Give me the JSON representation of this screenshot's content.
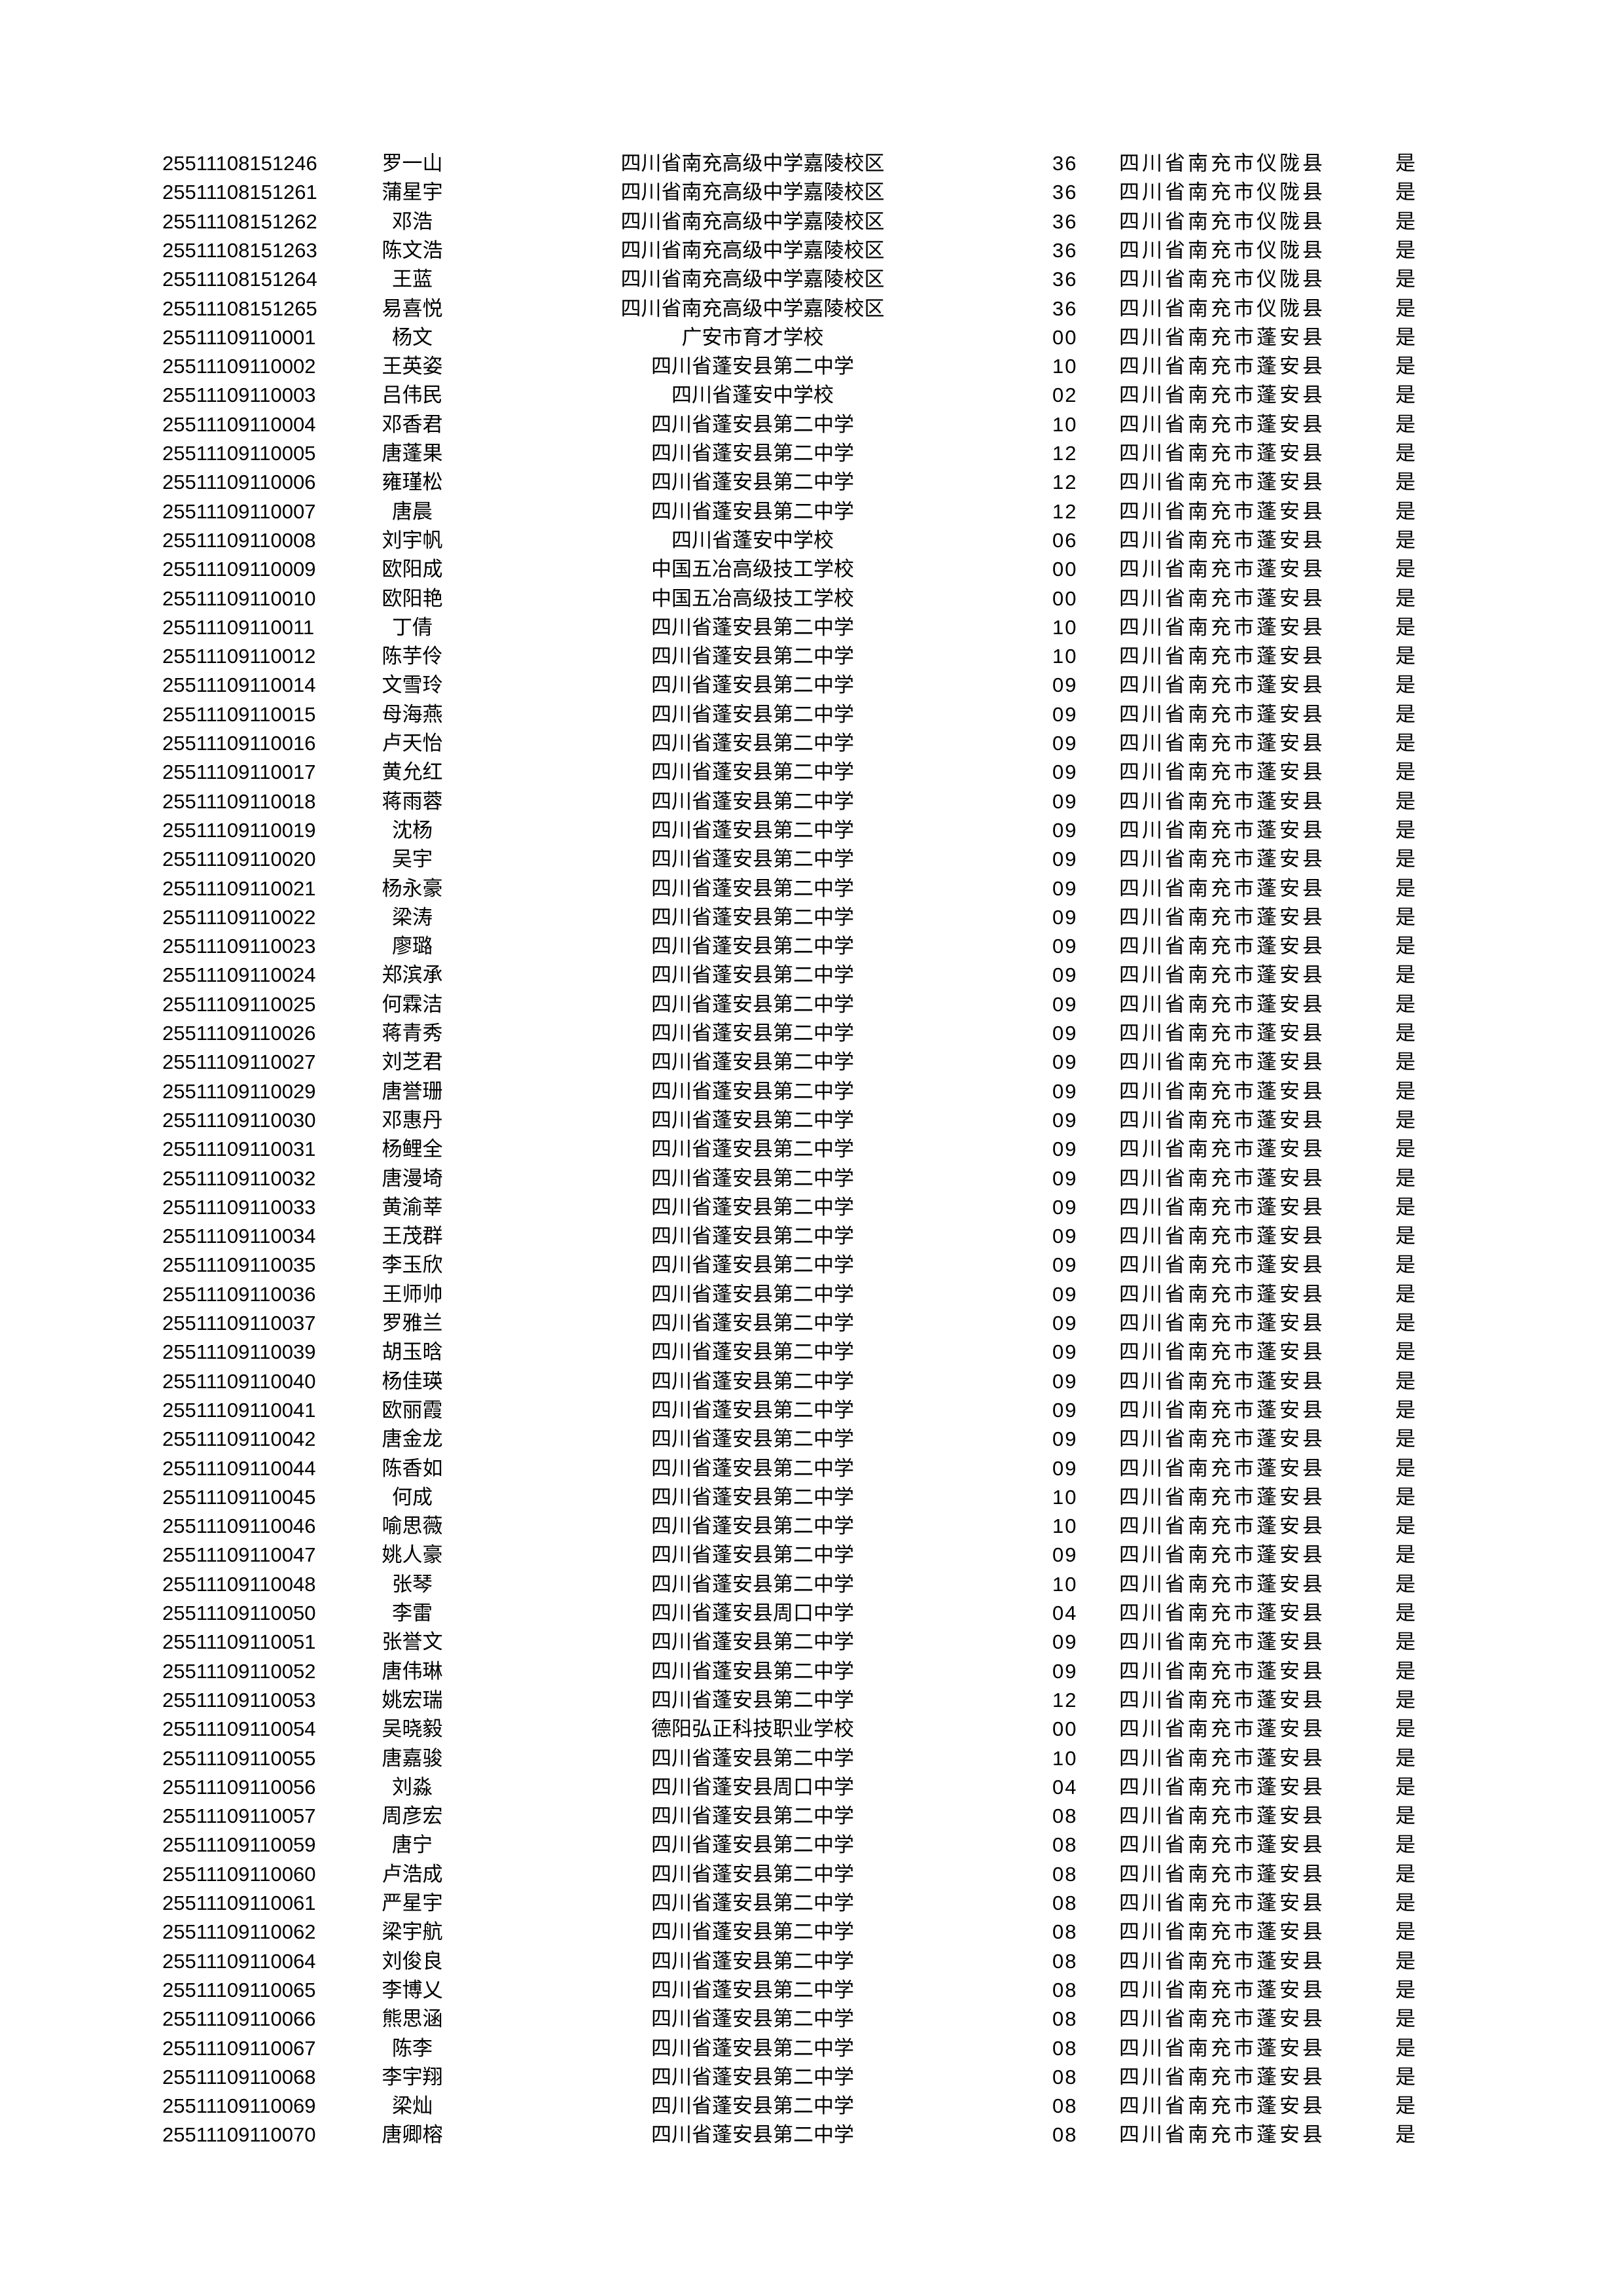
{
  "rows": [
    [
      "25511108151246",
      "罗一山",
      "四川省南充高级中学嘉陵校区",
      "36",
      "四川省南充市仪陇县",
      "是"
    ],
    [
      "25511108151261",
      "蒲星宇",
      "四川省南充高级中学嘉陵校区",
      "36",
      "四川省南充市仪陇县",
      "是"
    ],
    [
      "25511108151262",
      "邓浩",
      "四川省南充高级中学嘉陵校区",
      "36",
      "四川省南充市仪陇县",
      "是"
    ],
    [
      "25511108151263",
      "陈文浩",
      "四川省南充高级中学嘉陵校区",
      "36",
      "四川省南充市仪陇县",
      "是"
    ],
    [
      "25511108151264",
      "王蓝",
      "四川省南充高级中学嘉陵校区",
      "36",
      "四川省南充市仪陇县",
      "是"
    ],
    [
      "25511108151265",
      "易喜悦",
      "四川省南充高级中学嘉陵校区",
      "36",
      "四川省南充市仪陇县",
      "是"
    ],
    [
      "25511109110001",
      "杨文",
      "广安市育才学校",
      "00",
      "四川省南充市蓬安县",
      "是"
    ],
    [
      "25511109110002",
      "王英姿",
      "四川省蓬安县第二中学",
      "10",
      "四川省南充市蓬安县",
      "是"
    ],
    [
      "25511109110003",
      "吕伟民",
      "四川省蓬安中学校",
      "02",
      "四川省南充市蓬安县",
      "是"
    ],
    [
      "25511109110004",
      "邓香君",
      "四川省蓬安县第二中学",
      "10",
      "四川省南充市蓬安县",
      "是"
    ],
    [
      "25511109110005",
      "唐蓬果",
      "四川省蓬安县第二中学",
      "12",
      "四川省南充市蓬安县",
      "是"
    ],
    [
      "25511109110006",
      "雍瑾松",
      "四川省蓬安县第二中学",
      "12",
      "四川省南充市蓬安县",
      "是"
    ],
    [
      "25511109110007",
      "唐晨",
      "四川省蓬安县第二中学",
      "12",
      "四川省南充市蓬安县",
      "是"
    ],
    [
      "25511109110008",
      "刘宇帆",
      "四川省蓬安中学校",
      "06",
      "四川省南充市蓬安县",
      "是"
    ],
    [
      "25511109110009",
      "欧阳成",
      "中国五冶高级技工学校",
      "00",
      "四川省南充市蓬安县",
      "是"
    ],
    [
      "25511109110010",
      "欧阳艳",
      "中国五冶高级技工学校",
      "00",
      "四川省南充市蓬安县",
      "是"
    ],
    [
      "25511109110011",
      "丁倩",
      "四川省蓬安县第二中学",
      "10",
      "四川省南充市蓬安县",
      "是"
    ],
    [
      "25511109110012",
      "陈芋伶",
      "四川省蓬安县第二中学",
      "10",
      "四川省南充市蓬安县",
      "是"
    ],
    [
      "25511109110014",
      "文雪玲",
      "四川省蓬安县第二中学",
      "09",
      "四川省南充市蓬安县",
      "是"
    ],
    [
      "25511109110015",
      "母海燕",
      "四川省蓬安县第二中学",
      "09",
      "四川省南充市蓬安县",
      "是"
    ],
    [
      "25511109110016",
      "卢天怡",
      "四川省蓬安县第二中学",
      "09",
      "四川省南充市蓬安县",
      "是"
    ],
    [
      "25511109110017",
      "黄允红",
      "四川省蓬安县第二中学",
      "09",
      "四川省南充市蓬安县",
      "是"
    ],
    [
      "25511109110018",
      "蒋雨蓉",
      "四川省蓬安县第二中学",
      "09",
      "四川省南充市蓬安县",
      "是"
    ],
    [
      "25511109110019",
      "沈杨",
      "四川省蓬安县第二中学",
      "09",
      "四川省南充市蓬安县",
      "是"
    ],
    [
      "25511109110020",
      "吴宇",
      "四川省蓬安县第二中学",
      "09",
      "四川省南充市蓬安县",
      "是"
    ],
    [
      "25511109110021",
      "杨永豪",
      "四川省蓬安县第二中学",
      "09",
      "四川省南充市蓬安县",
      "是"
    ],
    [
      "25511109110022",
      "梁涛",
      "四川省蓬安县第二中学",
      "09",
      "四川省南充市蓬安县",
      "是"
    ],
    [
      "25511109110023",
      "廖璐",
      "四川省蓬安县第二中学",
      "09",
      "四川省南充市蓬安县",
      "是"
    ],
    [
      "25511109110024",
      "郑滨承",
      "四川省蓬安县第二中学",
      "09",
      "四川省南充市蓬安县",
      "是"
    ],
    [
      "25511109110025",
      "何霖洁",
      "四川省蓬安县第二中学",
      "09",
      "四川省南充市蓬安县",
      "是"
    ],
    [
      "25511109110026",
      "蒋青秀",
      "四川省蓬安县第二中学",
      "09",
      "四川省南充市蓬安县",
      "是"
    ],
    [
      "25511109110027",
      "刘芝君",
      "四川省蓬安县第二中学",
      "09",
      "四川省南充市蓬安县",
      "是"
    ],
    [
      "25511109110029",
      "唐誉珊",
      "四川省蓬安县第二中学",
      "09",
      "四川省南充市蓬安县",
      "是"
    ],
    [
      "25511109110030",
      "邓惠丹",
      "四川省蓬安县第二中学",
      "09",
      "四川省南充市蓬安县",
      "是"
    ],
    [
      "25511109110031",
      "杨鲤全",
      "四川省蓬安县第二中学",
      "09",
      "四川省南充市蓬安县",
      "是"
    ],
    [
      "25511109110032",
      "唐漫埼",
      "四川省蓬安县第二中学",
      "09",
      "四川省南充市蓬安县",
      "是"
    ],
    [
      "25511109110033",
      "黄渝莘",
      "四川省蓬安县第二中学",
      "09",
      "四川省南充市蓬安县",
      "是"
    ],
    [
      "25511109110034",
      "王茂群",
      "四川省蓬安县第二中学",
      "09",
      "四川省南充市蓬安县",
      "是"
    ],
    [
      "25511109110035",
      "李玉欣",
      "四川省蓬安县第二中学",
      "09",
      "四川省南充市蓬安县",
      "是"
    ],
    [
      "25511109110036",
      "王师帅",
      "四川省蓬安县第二中学",
      "09",
      "四川省南充市蓬安县",
      "是"
    ],
    [
      "25511109110037",
      "罗雅兰",
      "四川省蓬安县第二中学",
      "09",
      "四川省南充市蓬安县",
      "是"
    ],
    [
      "25511109110039",
      "胡玉晗",
      "四川省蓬安县第二中学",
      "09",
      "四川省南充市蓬安县",
      "是"
    ],
    [
      "25511109110040",
      "杨佳瑛",
      "四川省蓬安县第二中学",
      "09",
      "四川省南充市蓬安县",
      "是"
    ],
    [
      "25511109110041",
      "欧丽霞",
      "四川省蓬安县第二中学",
      "09",
      "四川省南充市蓬安县",
      "是"
    ],
    [
      "25511109110042",
      "唐金龙",
      "四川省蓬安县第二中学",
      "09",
      "四川省南充市蓬安县",
      "是"
    ],
    [
      "25511109110044",
      "陈香如",
      "四川省蓬安县第二中学",
      "09",
      "四川省南充市蓬安县",
      "是"
    ],
    [
      "25511109110045",
      "何成",
      "四川省蓬安县第二中学",
      "10",
      "四川省南充市蓬安县",
      "是"
    ],
    [
      "25511109110046",
      "喻思薇",
      "四川省蓬安县第二中学",
      "10",
      "四川省南充市蓬安县",
      "是"
    ],
    [
      "25511109110047",
      "姚人豪",
      "四川省蓬安县第二中学",
      "09",
      "四川省南充市蓬安县",
      "是"
    ],
    [
      "25511109110048",
      "张琴",
      "四川省蓬安县第二中学",
      "10",
      "四川省南充市蓬安县",
      "是"
    ],
    [
      "25511109110050",
      "李雷",
      "四川省蓬安县周口中学",
      "04",
      "四川省南充市蓬安县",
      "是"
    ],
    [
      "25511109110051",
      "张誉文",
      "四川省蓬安县第二中学",
      "09",
      "四川省南充市蓬安县",
      "是"
    ],
    [
      "25511109110052",
      "唐伟琳",
      "四川省蓬安县第二中学",
      "09",
      "四川省南充市蓬安县",
      "是"
    ],
    [
      "25511109110053",
      "姚宏瑞",
      "四川省蓬安县第二中学",
      "12",
      "四川省南充市蓬安县",
      "是"
    ],
    [
      "25511109110054",
      "吴晓毅",
      "德阳弘正科技职业学校",
      "00",
      "四川省南充市蓬安县",
      "是"
    ],
    [
      "25511109110055",
      "唐嘉骏",
      "四川省蓬安县第二中学",
      "10",
      "四川省南充市蓬安县",
      "是"
    ],
    [
      "25511109110056",
      "刘淼",
      "四川省蓬安县周口中学",
      "04",
      "四川省南充市蓬安县",
      "是"
    ],
    [
      "25511109110057",
      "周彦宏",
      "四川省蓬安县第二中学",
      "08",
      "四川省南充市蓬安县",
      "是"
    ],
    [
      "25511109110059",
      "唐宁",
      "四川省蓬安县第二中学",
      "08",
      "四川省南充市蓬安县",
      "是"
    ],
    [
      "25511109110060",
      "卢浩成",
      "四川省蓬安县第二中学",
      "08",
      "四川省南充市蓬安县",
      "是"
    ],
    [
      "25511109110061",
      "严星宇",
      "四川省蓬安县第二中学",
      "08",
      "四川省南充市蓬安县",
      "是"
    ],
    [
      "25511109110062",
      "梁宇航",
      "四川省蓬安县第二中学",
      "08",
      "四川省南充市蓬安县",
      "是"
    ],
    [
      "25511109110064",
      "刘俊良",
      "四川省蓬安县第二中学",
      "08",
      "四川省南充市蓬安县",
      "是"
    ],
    [
      "25511109110065",
      "李博乂",
      "四川省蓬安县第二中学",
      "08",
      "四川省南充市蓬安县",
      "是"
    ],
    [
      "25511109110066",
      "熊思涵",
      "四川省蓬安县第二中学",
      "08",
      "四川省南充市蓬安县",
      "是"
    ],
    [
      "25511109110067",
      "陈李",
      "四川省蓬安县第二中学",
      "08",
      "四川省南充市蓬安县",
      "是"
    ],
    [
      "25511109110068",
      "李宇翔",
      "四川省蓬安县第二中学",
      "08",
      "四川省南充市蓬安县",
      "是"
    ],
    [
      "25511109110069",
      "梁灿",
      "四川省蓬安县第二中学",
      "08",
      "四川省南充市蓬安县",
      "是"
    ],
    [
      "25511109110070",
      "唐卿榕",
      "四川省蓬安县第二中学",
      "08",
      "四川省南充市蓬安县",
      "是"
    ]
  ]
}
